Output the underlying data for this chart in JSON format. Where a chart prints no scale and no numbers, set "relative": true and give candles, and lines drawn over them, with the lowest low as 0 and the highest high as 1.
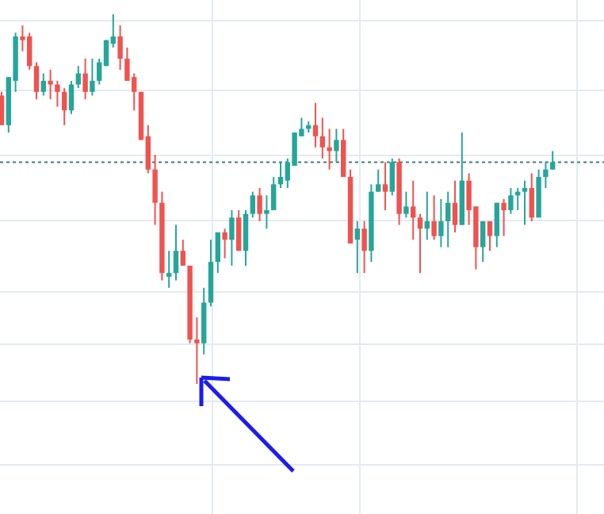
{
  "chart_data": {
    "type": "candlestick",
    "relative": true,
    "grid": true,
    "colors": [
      "#ef5350",
      "#26a69a",
      "#26a69a",
      "#ef5350",
      "#ef5350",
      "#ef5350",
      "#26a69a",
      "#ef5350",
      "#ef5350",
      "#ef5350",
      "#26a69a",
      "#26a69a",
      "#ef5350",
      "#26a69a",
      "#26a69a",
      "#26a69a",
      "#26a69a",
      "#ef5350",
      "#ef5350",
      "#ef5350",
      "#ef5350",
      "#ef5350",
      "#ef5350",
      "#ef5350",
      "#26a69a",
      "#26a69a",
      "#ef5350",
      "#ef5350",
      "#ef5350",
      "#26a69a",
      "#26a69a",
      "#26a69a",
      "#ef5350",
      "#26a69a",
      "#ef5350",
      "#26a69a",
      "#26a69a",
      "#ef5350",
      "#26a69a",
      "#26a69a",
      "#26a69a",
      "#26a69a",
      "#26a69a",
      "#26a69a",
      "#26a69a",
      "#ef5350",
      "#ef5350",
      "#ef5350",
      "#26a69a",
      "#ef5350",
      "#ef5350",
      "#26a69a",
      "#ef5350",
      "#26a69a",
      "#26a69a",
      "#ef5350",
      "#26a69a",
      "#ef5350",
      "#26a69a",
      "#ef5350",
      "#ef5350",
      "#26a69a",
      "#ef5350",
      "#26a69a",
      "#26a69a",
      "#ef5350",
      "#26a69a",
      "#ef5350",
      "#ef5350",
      "#26a69a",
      "#ef5350",
      "#26a69a",
      "#ef5350",
      "#26a69a",
      "#26a69a",
      "#26a69a",
      "#ef5350",
      "#26a69a",
      "#26a69a",
      "#26a69a"
    ],
    "categories": [
      null,
      null,
      null,
      null,
      null,
      null,
      null,
      null,
      null,
      null,
      null,
      null,
      null,
      null,
      null,
      null,
      null,
      null,
      null,
      null,
      null,
      null,
      null,
      null,
      null,
      null,
      null,
      null,
      null,
      null,
      null,
      null,
      null,
      null,
      null,
      null,
      null,
      null,
      null,
      null,
      null,
      null,
      null,
      null,
      null,
      null,
      null,
      null,
      null,
      null,
      null,
      null,
      null,
      null,
      null,
      null,
      null,
      null,
      null,
      null,
      null,
      null,
      null,
      null,
      null,
      null,
      null,
      null,
      null,
      null,
      null,
      null,
      null,
      null,
      null,
      null,
      null,
      null,
      null,
      null
    ],
    "ohlc": [
      [
        0.78,
        0.79,
        0.7,
        0.7
      ],
      [
        0.7,
        0.83,
        0.68,
        0.83
      ],
      [
        0.82,
        0.95,
        0.79,
        0.94
      ],
      [
        0.94,
        0.97,
        0.9,
        0.93
      ],
      [
        0.94,
        0.95,
        0.85,
        0.86
      ],
      [
        0.86,
        0.87,
        0.77,
        0.79
      ],
      [
        0.79,
        0.84,
        0.78,
        0.82
      ],
      [
        0.82,
        0.85,
        0.77,
        0.81
      ],
      [
        0.81,
        0.82,
        0.75,
        0.79
      ],
      [
        0.79,
        0.8,
        0.7,
        0.74
      ],
      [
        0.74,
        0.82,
        0.73,
        0.81
      ],
      [
        0.81,
        0.86,
        0.8,
        0.84
      ],
      [
        0.84,
        0.88,
        0.77,
        0.79
      ],
      [
        0.79,
        0.88,
        0.78,
        0.82
      ],
      [
        0.82,
        0.88,
        0.81,
        0.87
      ],
      [
        0.86,
        0.93,
        0.86,
        0.93
      ],
      [
        0.92,
        1.0,
        0.91,
        0.94
      ],
      [
        0.94,
        0.97,
        0.85,
        0.88
      ],
      [
        0.88,
        0.91,
        0.82,
        0.82
      ],
      [
        0.83,
        0.84,
        0.74,
        0.79
      ],
      [
        0.79,
        0.79,
        0.66,
        0.66
      ],
      [
        0.67,
        0.7,
        0.57,
        0.58
      ],
      [
        0.58,
        0.62,
        0.43,
        0.49
      ],
      [
        0.49,
        0.52,
        0.28,
        0.3
      ],
      [
        0.29,
        0.36,
        0.26,
        0.3
      ],
      [
        0.3,
        0.43,
        0.28,
        0.36
      ],
      [
        0.36,
        0.39,
        0.32,
        0.32
      ],
      [
        0.32,
        0.32,
        0.11,
        0.12
      ],
      [
        0.12,
        0.18,
        0,
        0.11
      ],
      [
        0.11,
        0.26,
        0.08,
        0.22
      ],
      [
        0.22,
        0.39,
        0.21,
        0.33
      ],
      [
        0.33,
        0.41,
        0.3,
        0.41
      ],
      [
        0.41,
        0.42,
        0.34,
        0.39
      ],
      [
        0.39,
        0.47,
        0.32,
        0.45
      ],
      [
        0.45,
        0.47,
        0.36,
        0.36
      ],
      [
        0.36,
        0.47,
        0.32,
        0.46
      ],
      [
        0.46,
        0.52,
        0.45,
        0.51
      ],
      [
        0.51,
        0.53,
        0.44,
        0.46
      ],
      [
        0.46,
        0.51,
        0.42,
        0.47
      ],
      [
        0.47,
        0.56,
        0.47,
        0.54
      ],
      [
        0.54,
        0.6,
        0.53,
        0.56
      ],
      [
        0.55,
        0.61,
        0.53,
        0.6
      ],
      [
        0.59,
        0.68,
        0.59,
        0.68
      ],
      [
        0.67,
        0.72,
        0.67,
        0.69
      ],
      [
        0.69,
        0.71,
        0.68,
        0.7
      ],
      [
        0.7,
        0.76,
        0.64,
        0.67
      ],
      [
        0.67,
        0.72,
        0.61,
        0.64
      ],
      [
        0.64,
        0.69,
        0.58,
        0.63
      ],
      [
        0.63,
        0.69,
        0.6,
        0.66
      ],
      [
        0.66,
        0.69,
        0.56,
        0.56
      ],
      [
        0.56,
        0.58,
        0.38,
        0.38
      ],
      [
        0.39,
        0.44,
        0.3,
        0.42
      ],
      [
        0.42,
        0.44,
        0.3,
        0.36
      ],
      [
        0.36,
        0.54,
        0.33,
        0.52
      ],
      [
        0.52,
        0.58,
        0.52,
        0.54
      ],
      [
        0.54,
        0.6,
        0.47,
        0.52
      ],
      [
        0.52,
        0.61,
        0.51,
        0.6
      ],
      [
        0.6,
        0.61,
        0.43,
        0.46
      ],
      [
        0.46,
        0.52,
        0.45,
        0.48
      ],
      [
        0.48,
        0.55,
        0.39,
        0.45
      ],
      [
        0.45,
        0.46,
        0.3,
        0.42
      ],
      [
        0.42,
        0.52,
        0.39,
        0.44
      ],
      [
        0.44,
        0.51,
        0.39,
        0.4
      ],
      [
        0.4,
        0.5,
        0.37,
        0.44
      ],
      [
        0.44,
        0.52,
        0.37,
        0.49
      ],
      [
        0.49,
        0.55,
        0.41,
        0.43
      ],
      [
        0.43,
        0.68,
        0.43,
        0.55
      ],
      [
        0.55,
        0.57,
        0.43,
        0.47
      ],
      [
        0.48,
        0.48,
        0.31,
        0.37
      ],
      [
        0.37,
        0.44,
        0.33,
        0.44
      ],
      [
        0.44,
        0.44,
        0.36,
        0.4
      ],
      [
        0.4,
        0.49,
        0.37,
        0.49
      ],
      [
        0.49,
        0.5,
        0.4,
        0.47
      ],
      [
        0.47,
        0.53,
        0.46,
        0.51
      ],
      [
        0.51,
        0.53,
        0.47,
        0.52
      ],
      [
        0.52,
        0.55,
        0.43,
        0.53
      ],
      [
        0.53,
        0.57,
        0.44,
        0.45
      ],
      [
        0.45,
        0.58,
        0.45,
        0.56
      ],
      [
        0.56,
        0.6,
        0.53,
        0.58
      ],
      [
        0.58,
        0.63,
        0.58,
        0.6
      ]
    ],
    "ref_lines": [
      {
        "axis": "y",
        "value": 0.6,
        "color": "#3d7f79",
        "line_style": "dotted"
      }
    ]
  }
}
